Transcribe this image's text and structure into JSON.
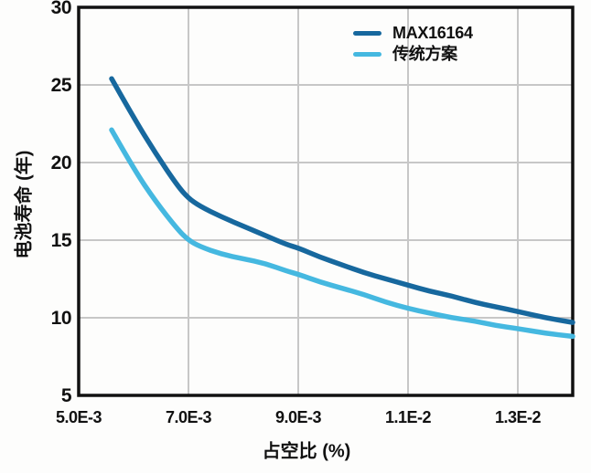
{
  "chart_data": {
    "type": "line",
    "title": "",
    "xlabel": "占空比 (%)",
    "ylabel": "电池寿命 (年)",
    "xlim": [
      0.005,
      0.014
    ],
    "ylim": [
      5,
      30
    ],
    "grid": true,
    "grid_color": "#c7c7c7",
    "axis_color": "#111111",
    "legend_position": "top-right-inside",
    "xticks": {
      "values": [
        0.005,
        0.007,
        0.009,
        0.011,
        0.013
      ],
      "labels": [
        "5.0E-3",
        "7.0E-3",
        "9.0E-3",
        "1.1E-2",
        "1.3E-2"
      ]
    },
    "yticks": {
      "values": [
        5,
        10,
        15,
        20,
        25,
        30
      ],
      "labels": [
        "5",
        "10",
        "15",
        "20",
        "25",
        "30"
      ]
    },
    "series": [
      {
        "name": "MAX16164",
        "color": "#17689e",
        "x": [
          0.0056,
          0.006,
          0.0064,
          0.0068,
          0.007,
          0.0072,
          0.0076,
          0.008,
          0.0084,
          0.0088,
          0.009,
          0.0094,
          0.0098,
          0.0102,
          0.0106,
          0.011,
          0.0114,
          0.0118,
          0.0122,
          0.0126,
          0.013,
          0.0135,
          0.014
        ],
        "y": [
          25.4,
          22.9,
          20.6,
          18.5,
          17.7,
          17.2,
          16.5,
          15.9,
          15.3,
          14.7,
          14.5,
          13.9,
          13.4,
          12.9,
          12.5,
          12.1,
          11.7,
          11.4,
          11.0,
          10.7,
          10.4,
          10.0,
          9.7
        ]
      },
      {
        "name": "传统方案",
        "color": "#45b8e0",
        "x": [
          0.0056,
          0.006,
          0.0064,
          0.0068,
          0.007,
          0.0072,
          0.0076,
          0.008,
          0.0084,
          0.0088,
          0.009,
          0.0094,
          0.0098,
          0.0102,
          0.0106,
          0.011,
          0.0114,
          0.0118,
          0.0122,
          0.0126,
          0.013,
          0.0135,
          0.014
        ],
        "y": [
          22.1,
          19.6,
          17.5,
          15.7,
          15.0,
          14.6,
          14.1,
          13.8,
          13.5,
          13.0,
          12.8,
          12.3,
          11.9,
          11.5,
          11.0,
          10.6,
          10.3,
          10.0,
          9.8,
          9.5,
          9.3,
          9.0,
          8.8
        ]
      }
    ]
  }
}
